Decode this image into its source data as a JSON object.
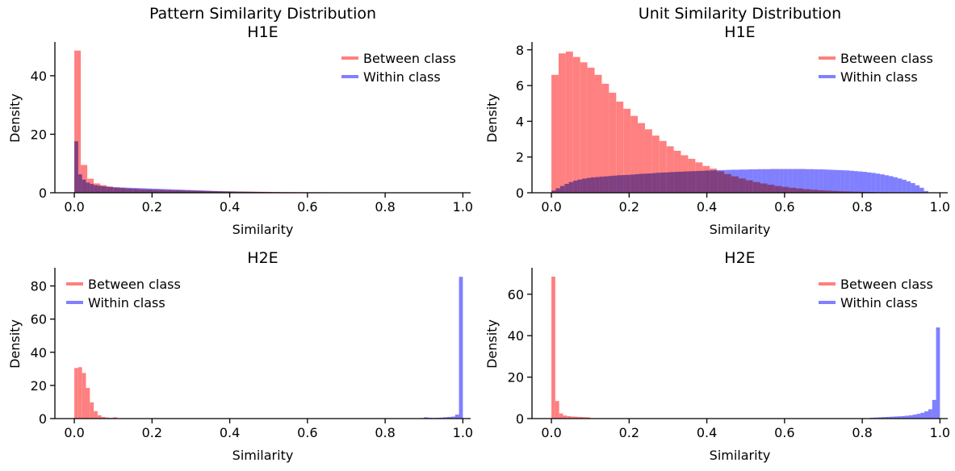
{
  "chart_data": [
    {
      "type": "histogram",
      "title": "Pattern Similarity Distribution\nH1E",
      "xlabel": "Similarity",
      "ylabel": "Density",
      "xlim": [
        -0.05,
        1.02
      ],
      "ylim": [
        0,
        51
      ],
      "xticks": [
        0.0,
        0.2,
        0.4,
        0.6,
        0.8,
        1.0
      ],
      "xtick_labels": [
        "0.0",
        "0.2",
        "0.4",
        "0.6",
        "0.8",
        "1.0"
      ],
      "yticks": [
        0,
        20,
        40
      ],
      "ytick_labels": [
        "0",
        "20",
        "40"
      ],
      "legend": {
        "placement": "top-right",
        "entries": [
          "Between class",
          "Within class"
        ]
      },
      "series": [
        {
          "name": "Between class",
          "color": "#ff8080",
          "bin_range": [
            0,
            1
          ],
          "values": [
            48.6,
            9.5,
            4.8,
            3.2,
            2.6,
            2.1,
            1.8,
            1.6,
            1.4,
            1.3,
            1.2,
            1.1,
            1.0,
            0.95,
            0.9,
            0.85,
            0.8,
            0.75,
            0.7,
            0.65,
            0.6,
            0.55,
            0.5,
            0.48,
            0.45,
            0.42,
            0.4,
            0.38,
            0.35,
            0.33,
            0.3,
            0.28,
            0.27,
            0.25,
            0.24,
            0.22,
            0.2,
            0.19,
            0.18,
            0.17,
            0.15,
            0.14,
            0.13,
            0.12,
            0.11,
            0.1,
            0.09,
            0.08,
            0.08,
            0.07,
            0.06,
            0.06,
            0.05,
            0.05,
            0.05,
            0.04,
            0.04,
            0.03,
            0.03,
            0.03
          ]
        },
        {
          "name": "Within class",
          "color": "#8080ff",
          "bin_range": [
            0,
            1
          ],
          "values": [
            17.6,
            6.3,
            4.5,
            3.5,
            3.0,
            2.6,
            2.4,
            2.2,
            2.1,
            2.0,
            1.9,
            1.85,
            1.8,
            1.75,
            1.7,
            1.65,
            1.6,
            1.55,
            1.5,
            1.45,
            1.4,
            1.35,
            1.3,
            1.25,
            1.2,
            1.15,
            1.1,
            1.05,
            1.0,
            0.95,
            0.9,
            0.85,
            0.8,
            0.75,
            0.7,
            0.65,
            0.6,
            0.55,
            0.5,
            0.48,
            0.45,
            0.42,
            0.4,
            0.38,
            0.36,
            0.33,
            0.3,
            0.28,
            0.25,
            0.22,
            0.2,
            0.18,
            0.16,
            0.14,
            0.12,
            0.1,
            0.09,
            0.08,
            0.07,
            0.06,
            0.05,
            0.05,
            0.04,
            0.04,
            0.03,
            0.03,
            0.03,
            0.02,
            0.02,
            0.02,
            0.02,
            0.02,
            0.02,
            0.01,
            0.01,
            0.01,
            0.01,
            0.01,
            0.01,
            0.01,
            0.01,
            0.01,
            0.01,
            0.01,
            0.01,
            0.01,
            0.01,
            0.01,
            0.01,
            0.01,
            0.01,
            0.01,
            0.01,
            0.01,
            0.01,
            0.01,
            0.01,
            0.01,
            0.01,
            0.01
          ]
        }
      ]
    },
    {
      "type": "histogram",
      "title": "Unit Similarity Distribution\nH1E",
      "xlabel": "Similarity",
      "ylabel": "Density",
      "xlim": [
        -0.05,
        1.02
      ],
      "ylim": [
        0,
        8.35
      ],
      "xticks": [
        0.0,
        0.2,
        0.4,
        0.6,
        0.8,
        1.0
      ],
      "xtick_labels": [
        "0.0",
        "0.2",
        "0.4",
        "0.6",
        "0.8",
        "1.0"
      ],
      "yticks": [
        0,
        2,
        4,
        6,
        8
      ],
      "ytick_labels": [
        "0",
        "2",
        "4",
        "6",
        "8"
      ],
      "legend": {
        "placement": "top-right",
        "entries": [
          "Between class",
          "Within class"
        ]
      },
      "series": [
        {
          "name": "Between class",
          "color": "#ff8080",
          "bin_range": [
            0,
            1
          ],
          "values": [
            6.6,
            7.8,
            7.9,
            7.6,
            7.3,
            7.0,
            6.6,
            6.1,
            5.6,
            5.1,
            4.7,
            4.3,
            3.9,
            3.55,
            3.2,
            2.9,
            2.6,
            2.35,
            2.1,
            1.9,
            1.7,
            1.5,
            1.35,
            1.2,
            1.05,
            0.92,
            0.8,
            0.7,
            0.6,
            0.52,
            0.45,
            0.38,
            0.33,
            0.28,
            0.24,
            0.2,
            0.17,
            0.14,
            0.12,
            0.1,
            0.08,
            0.07,
            0.06,
            0.05,
            0.04,
            0.03,
            0.03,
            0.02,
            0.02,
            0.02,
            0.01,
            0.01,
            0.01,
            0.01
          ]
        },
        {
          "name": "Within class",
          "color": "#8080ff",
          "bin_range": [
            0,
            0.97
          ],
          "values": [
            0.12,
            0.25,
            0.38,
            0.5,
            0.6,
            0.68,
            0.74,
            0.79,
            0.83,
            0.86,
            0.88,
            0.9,
            0.92,
            0.94,
            0.96,
            0.98,
            0.99,
            1.0,
            1.02,
            1.04,
            1.06,
            1.07,
            1.08,
            1.1,
            1.12,
            1.13,
            1.14,
            1.16,
            1.17,
            1.18,
            1.19,
            1.2,
            1.21,
            1.22,
            1.23,
            1.24,
            1.25,
            1.26,
            1.27,
            1.27,
            1.28,
            1.29,
            1.29,
            1.3,
            1.3,
            1.31,
            1.31,
            1.32,
            1.32,
            1.32,
            1.33,
            1.33,
            1.33,
            1.33,
            1.33,
            1.33,
            1.33,
            1.33,
            1.32,
            1.32,
            1.31,
            1.31,
            1.3,
            1.29,
            1.28,
            1.27,
            1.26,
            1.25,
            1.23,
            1.21,
            1.19,
            1.17,
            1.14,
            1.11,
            1.07,
            1.03,
            0.98,
            0.93,
            0.87,
            0.8,
            0.73,
            0.64,
            0.54,
            0.42,
            0.28,
            0.1
          ]
        }
      ]
    },
    {
      "type": "histogram",
      "title": "H2E",
      "xlabel": "Similarity",
      "ylabel": "Density",
      "xlim": [
        -0.05,
        1.02
      ],
      "ylim": [
        0,
        90
      ],
      "xticks": [
        0.0,
        0.2,
        0.4,
        0.6,
        0.8,
        1.0
      ],
      "xtick_labels": [
        "0.0",
        "0.2",
        "0.4",
        "0.6",
        "0.8",
        "1.0"
      ],
      "yticks": [
        0,
        20,
        40,
        60,
        80
      ],
      "ytick_labels": [
        "0",
        "20",
        "40",
        "60",
        "80"
      ],
      "legend": {
        "placement": "top-left",
        "entries": [
          "Between class",
          "Within class"
        ]
      },
      "series": [
        {
          "name": "Between class",
          "color": "#ff8080",
          "bin_range": [
            0,
            0.12
          ],
          "values": [
            30.5,
            31.0,
            27.5,
            18.5,
            9.8,
            4.5,
            2.0,
            1.0,
            0.6,
            0.4,
            0.8,
            0.2
          ]
        },
        {
          "name": "Within class",
          "color": "#8080ff",
          "bin_range": [
            0.88,
            1.0
          ],
          "values": [
            0.2,
            0.3,
            0.8,
            0.5,
            0.4,
            0.5,
            0.6,
            0.8,
            1.0,
            1.2,
            2.4,
            85.5
          ]
        }
      ]
    },
    {
      "type": "histogram",
      "title": "H2E",
      "xlabel": "Similarity",
      "ylabel": "Density",
      "xlim": [
        -0.05,
        1.02
      ],
      "ylim": [
        0,
        72
      ],
      "xticks": [
        0.0,
        0.2,
        0.4,
        0.6,
        0.8,
        1.0
      ],
      "xtick_labels": [
        "0.0",
        "0.2",
        "0.4",
        "0.6",
        "0.8",
        "1.0"
      ],
      "yticks": [
        0,
        20,
        40,
        60
      ],
      "ytick_labels": [
        "0",
        "20",
        "40",
        "60"
      ],
      "legend": {
        "placement": "top-right",
        "entries": [
          "Between class",
          "Within class"
        ]
      },
      "series": [
        {
          "name": "Between class",
          "color": "#ff8080",
          "bin_range": [
            0,
            0.1
          ],
          "values": [
            68.5,
            8.5,
            2.5,
            1.5,
            1.2,
            1.0,
            0.9,
            0.8,
            0.7,
            0.6
          ]
        },
        {
          "name": "Within class",
          "color": "#8080ff",
          "bin_range": [
            0.82,
            1.0
          ],
          "values": [
            0.4,
            0.5,
            0.6,
            0.7,
            0.8,
            0.9,
            1.0,
            1.1,
            1.2,
            1.4,
            1.6,
            1.9,
            2.3,
            2.8,
            3.5,
            4.5,
            9.0,
            44.0
          ]
        }
      ]
    }
  ]
}
